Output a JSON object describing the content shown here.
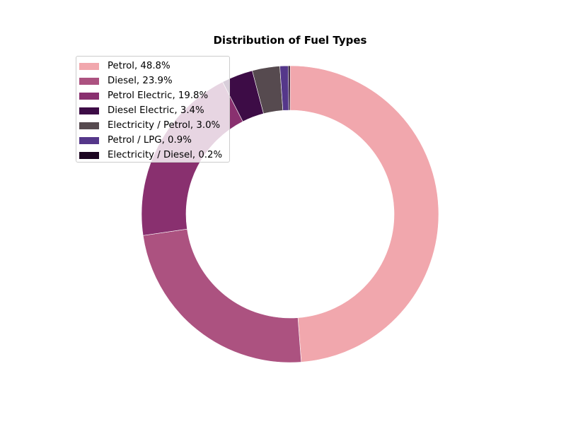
{
  "chart_data": {
    "type": "pie",
    "variant": "donut",
    "title": "Distribution of Fuel Types",
    "start_angle_deg": 90,
    "direction": "clockwise",
    "legend_position": "top-left",
    "slices": [
      {
        "label": "Petrol",
        "value": 48.8,
        "legend": "Petrol, 48.8%",
        "color": "#f1a7ad"
      },
      {
        "label": "Diesel",
        "value": 23.9,
        "legend": "Diesel, 23.9%",
        "color": "#ac5280"
      },
      {
        "label": "Petrol Electric",
        "value": 19.8,
        "legend": "Petrol Electric, 19.8%",
        "color": "#89306f"
      },
      {
        "label": "Diesel Electric",
        "value": 3.4,
        "legend": "Diesel Electric, 3.4%",
        "color": "#3d0c46"
      },
      {
        "label": "Electricity / Petrol",
        "value": 3.0,
        "legend": "Electricity / Petrol, 3.0%",
        "color": "#564a4f"
      },
      {
        "label": "Petrol / LPG",
        "value": 0.9,
        "legend": "Petrol / LPG, 0.9%",
        "color": "#55378a"
      },
      {
        "label": "Electricity / Diesel",
        "value": 0.2,
        "legend": "Electricity / Diesel, 0.2%",
        "color": "#1c0521"
      }
    ]
  }
}
